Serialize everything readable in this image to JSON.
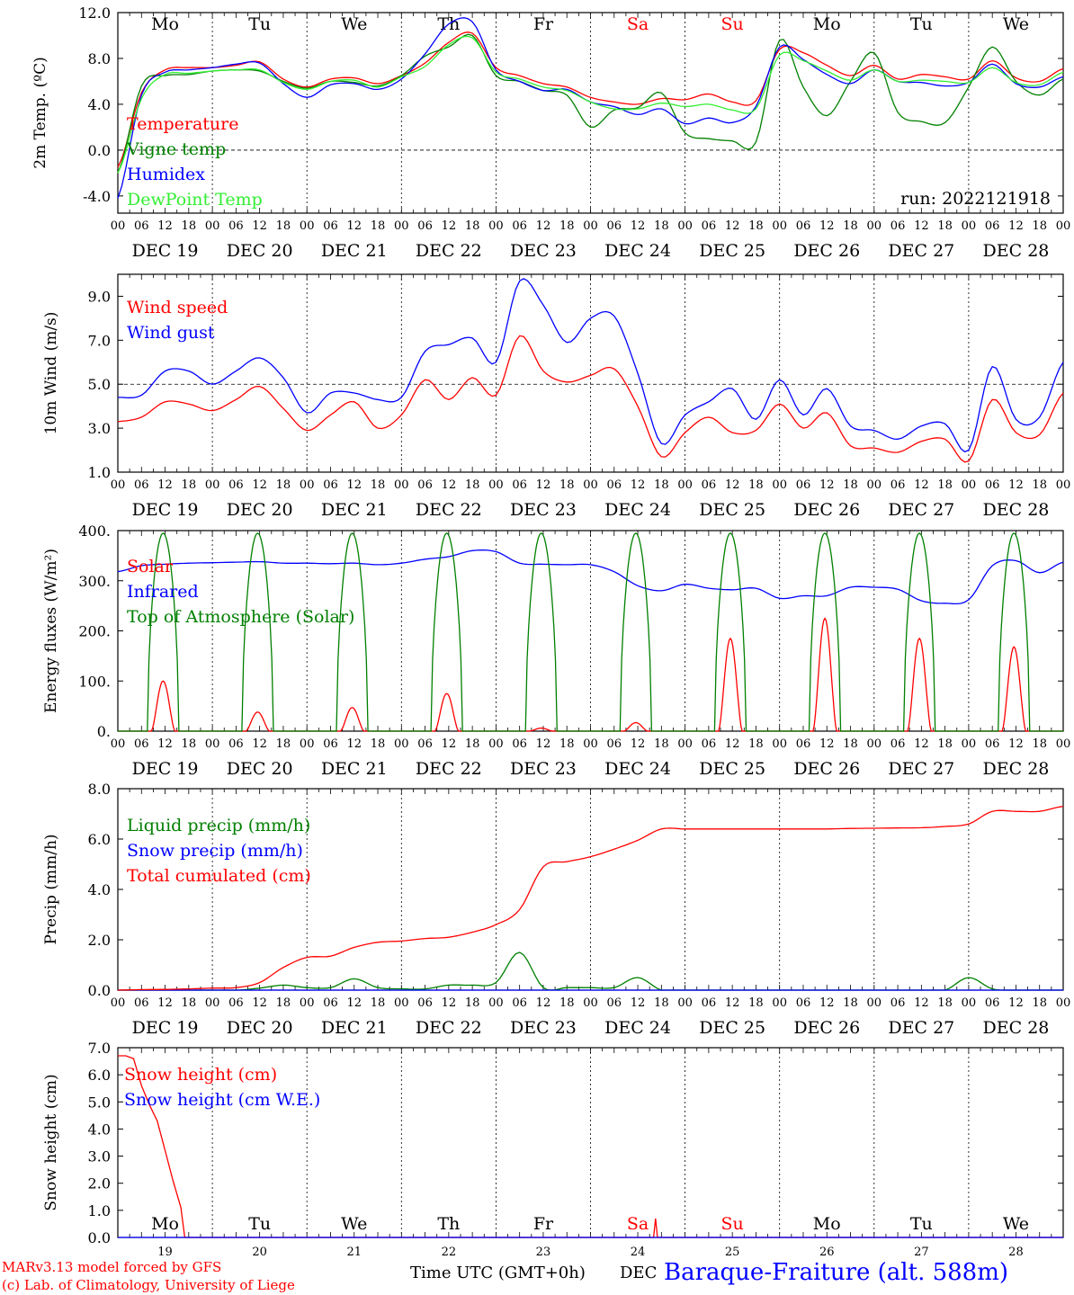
{
  "run_label": "run: 2022121918",
  "days": [
    "Mo",
    "Tu",
    "We",
    "Th",
    "Fr",
    "Sa",
    "Su",
    "Mo",
    "Tu",
    "We"
  ],
  "weekend_days": [
    "Sa",
    "Su"
  ],
  "date_labels": [
    "DEC 19",
    "DEC 20",
    "DEC 21",
    "DEC 22",
    "DEC 23",
    "DEC 24",
    "DEC 25",
    "DEC 26",
    "DEC 27",
    "DEC 28"
  ],
  "date_numbers": [
    "19",
    "20",
    "21",
    "22",
    "23",
    "24",
    "25",
    "26",
    "27",
    "28"
  ],
  "hour_ticks": [
    "00",
    "06",
    "12",
    "18"
  ],
  "colors": {
    "red": "#ff0000",
    "green": "#008000",
    "blue": "#0000ff",
    "lightgreen": "#33ee33"
  },
  "footer": {
    "model": "MARv3.13 model forced by GFS",
    "copyright": "(c) Lab. of Climatology, University of Liege",
    "time_label": "Time UTC (GMT+0h)",
    "dec_label": "DEC",
    "station": "Baraque-Fraiture (alt. 588m)"
  },
  "chart_data": [
    {
      "type": "line",
      "ylabel": "2m Temp. (ºC)",
      "ylim": [
        -5.5,
        12
      ],
      "yticks": [
        -4,
        0,
        4,
        8,
        12
      ],
      "ytick_labels": [
        "-4.0",
        "0.0",
        "4.0",
        "8.0",
        "12.0"
      ],
      "reference_line": 0,
      "x_hours": [
        0,
        6,
        12,
        18,
        24,
        30,
        36,
        42,
        48,
        54,
        60,
        66,
        72,
        78,
        84,
        90,
        96,
        102,
        108,
        114,
        120,
        126,
        132,
        138,
        144,
        150,
        156,
        162,
        168,
        174,
        180,
        186,
        192,
        198,
        204,
        210,
        216,
        222,
        228,
        234,
        240
      ],
      "series": [
        {
          "name": "Temperature",
          "color": "#ff0000",
          "values": [
            -1.5,
            5,
            7,
            7.2,
            7.2,
            7.4,
            7.7,
            6.2,
            5.5,
            6.2,
            6.3,
            5.8,
            6.5,
            7.6,
            9.4,
            10.2,
            7.2,
            6.5,
            5.8,
            5.5,
            4.6,
            4.2,
            4,
            4.5,
            4.4,
            4.9,
            4.2,
            4.3,
            8.8,
            8.5,
            7.4,
            6.5,
            7.4,
            6.2,
            6.6,
            6.4,
            6.2,
            7.8,
            6.3,
            6,
            7.1
          ]
        },
        {
          "name": "Vigne temp",
          "color": "#008000",
          "values": [
            -2,
            5.6,
            6.5,
            6.6,
            6.9,
            7,
            6.9,
            6,
            5.4,
            6,
            5.9,
            5.6,
            6.5,
            8.2,
            9,
            10,
            6.5,
            6,
            5.2,
            4.8,
            2,
            3.5,
            3.7,
            5,
            1.5,
            1,
            0.8,
            0.7,
            9.6,
            5.5,
            3,
            6,
            8.5,
            3.3,
            2.5,
            2.4,
            5.5,
            9,
            6,
            4.8,
            6.2
          ]
        },
        {
          "name": "Humidex",
          "color": "#0000ff",
          "values": [
            -4.2,
            4.8,
            6.8,
            7,
            7.2,
            7.5,
            7.6,
            5.8,
            4.6,
            5.7,
            5.8,
            5.3,
            6.2,
            8.4,
            11,
            11.2,
            7,
            6,
            5.2,
            5.3,
            4.2,
            3.8,
            3.1,
            3.6,
            2.3,
            2.8,
            2.4,
            3.8,
            9,
            7.9,
            6.6,
            5.8,
            7,
            6,
            5.9,
            5.6,
            5.9,
            7.5,
            5.8,
            5.5,
            6.4
          ]
        },
        {
          "name": "DewPoint Temp",
          "color": "#33ee33",
          "values": [
            -2,
            4.5,
            6.6,
            6.7,
            6.9,
            7,
            7,
            5.9,
            5.3,
            6,
            6.1,
            5.5,
            6.4,
            7.3,
            9.2,
            9.8,
            6.8,
            6.2,
            5.5,
            5.2,
            4.2,
            3.6,
            3.6,
            4.1,
            3.8,
            4,
            3.5,
            3.6,
            8.3,
            7.8,
            6.9,
            6.1,
            7,
            6,
            6.1,
            6,
            5.9,
            7.2,
            5.9,
            5.7,
            6.8
          ]
        }
      ]
    },
    {
      "type": "line",
      "ylabel": "10m Wind (m/s)",
      "ylim": [
        1,
        10
      ],
      "yticks": [
        1,
        3,
        5,
        7,
        9
      ],
      "ytick_labels": [
        "1.0",
        "3.0",
        "5.0",
        "7.0",
        "9.0"
      ],
      "reference_line": 5,
      "x_hours": [
        0,
        6,
        12,
        18,
        24,
        30,
        36,
        42,
        48,
        54,
        60,
        66,
        72,
        78,
        84,
        90,
        96,
        102,
        108,
        114,
        120,
        126,
        132,
        138,
        144,
        150,
        156,
        162,
        168,
        174,
        180,
        186,
        192,
        198,
        204,
        210,
        216,
        222,
        228,
        234,
        240
      ],
      "series": [
        {
          "name": "Wind speed",
          "color": "#ff0000",
          "values": [
            3.3,
            3.5,
            4.2,
            4.1,
            3.8,
            4.3,
            4.9,
            3.9,
            2.9,
            3.6,
            4.2,
            3,
            3.6,
            5.2,
            4.3,
            5.3,
            4.5,
            7.2,
            5.6,
            5.1,
            5.4,
            5.7,
            4,
            1.7,
            2.8,
            3.5,
            2.8,
            2.9,
            4.1,
            3,
            3.7,
            2.2,
            2.1,
            1.9,
            2.4,
            2.5,
            1.5,
            4.3,
            2.8,
            2.7,
            4.6
          ]
        },
        {
          "name": "Wind gust",
          "color": "#0000ff",
          "values": [
            4.4,
            4.5,
            5.6,
            5.6,
            5,
            5.6,
            6.2,
            5.3,
            3.7,
            4.6,
            4.6,
            4.3,
            4.4,
            6.5,
            6.8,
            7.1,
            6,
            9.7,
            8.6,
            6.9,
            8,
            8.1,
            5.5,
            2.3,
            3.6,
            4.2,
            4.8,
            3.4,
            5.2,
            3.6,
            4.8,
            3.1,
            2.9,
            2.5,
            3.1,
            3.2,
            2,
            5.8,
            3.4,
            3.5,
            6
          ]
        }
      ]
    },
    {
      "type": "line",
      "ylabel": "Energy fluxes (W/m²)",
      "ylim": [
        0,
        400
      ],
      "yticks": [
        0,
        100,
        200,
        300,
        400
      ],
      "ytick_labels": [
        "0.",
        "100.",
        "200.",
        "300.",
        "400."
      ],
      "x_hours": [
        0,
        6,
        12,
        18,
        24,
        30,
        36,
        42,
        48,
        54,
        60,
        66,
        72,
        78,
        84,
        90,
        96,
        102,
        108,
        114,
        120,
        126,
        132,
        138,
        144,
        150,
        156,
        162,
        168,
        174,
        180,
        186,
        192,
        198,
        204,
        210,
        216,
        222,
        228,
        234,
        240
      ],
      "series": [
        {
          "name": "Solar",
          "color": "#ff0000",
          "peaks_per_day": [
            100,
            38,
            47,
            75,
            6,
            17,
            185,
            225,
            185,
            168
          ]
        },
        {
          "name": "Infrared",
          "color": "#0000ff",
          "values": [
            318,
            330,
            333,
            335,
            336,
            337,
            338,
            335,
            335,
            334,
            335,
            332,
            335,
            343,
            348,
            360,
            358,
            335,
            333,
            332,
            332,
            318,
            290,
            280,
            293,
            285,
            282,
            285,
            265,
            270,
            270,
            287,
            287,
            283,
            260,
            255,
            262,
            330,
            340,
            316,
            337
          ]
        },
        {
          "name": "Top of Atmosphere (Solar)",
          "color": "#008000",
          "peaks_per_day": [
            395,
            395,
            395,
            395,
            395,
            395,
            395,
            395,
            395,
            395
          ]
        }
      ]
    },
    {
      "type": "line",
      "ylabel": "Precip (mm/h)",
      "ylim": [
        0,
        8
      ],
      "yticks": [
        0,
        2,
        4,
        6,
        8
      ],
      "ytick_labels": [
        "0.0",
        "2.0",
        "4.0",
        "6.0",
        "8.0"
      ],
      "x_hours": [
        0,
        6,
        12,
        18,
        24,
        30,
        36,
        42,
        48,
        54,
        60,
        66,
        72,
        78,
        84,
        90,
        96,
        102,
        108,
        114,
        120,
        126,
        132,
        138,
        144,
        150,
        156,
        162,
        168,
        174,
        180,
        186,
        192,
        198,
        204,
        210,
        216,
        222,
        228,
        234,
        240
      ],
      "series": [
        {
          "name": "Liquid precip (mm/h)",
          "color": "#008000",
          "values": [
            0,
            0,
            0,
            0,
            0,
            0,
            0.08,
            0.2,
            0.1,
            0.1,
            0.45,
            0.1,
            0.05,
            0.05,
            0.2,
            0.2,
            0.3,
            1.5,
            0.1,
            0.1,
            0.1,
            0.1,
            0.5,
            0,
            0,
            0,
            0,
            0,
            0,
            0,
            0,
            0,
            0,
            0,
            0,
            0,
            0.5,
            0.05,
            0,
            0,
            0
          ]
        },
        {
          "name": "Snow precip (mm/h)",
          "color": "#0000ff",
          "values": [
            0,
            0,
            0,
            0,
            0,
            0,
            0,
            0,
            0,
            0,
            0,
            0,
            0,
            0,
            0,
            0,
            0,
            0,
            0,
            0,
            0,
            0,
            0,
            0,
            0,
            0,
            0,
            0,
            0,
            0,
            0,
            0,
            0,
            0,
            0,
            0,
            0,
            0,
            0,
            0,
            0
          ]
        },
        {
          "name": "Total cumulated (cm)",
          "color": "#ff0000",
          "values": [
            0,
            0.02,
            0.03,
            0.05,
            0.08,
            0.1,
            0.3,
            0.9,
            1.3,
            1.35,
            1.7,
            1.9,
            1.95,
            2.05,
            2.1,
            2.3,
            2.6,
            3.2,
            4.9,
            5.1,
            5.3,
            5.6,
            5.95,
            6.4,
            6.4,
            6.4,
            6.4,
            6.4,
            6.4,
            6.4,
            6.4,
            6.42,
            6.43,
            6.44,
            6.45,
            6.5,
            6.6,
            7.1,
            7.1,
            7.1,
            7.3
          ]
        }
      ]
    },
    {
      "type": "line",
      "ylabel": "Snow height (cm)",
      "ylim": [
        0,
        7
      ],
      "yticks": [
        0,
        1,
        2,
        3,
        4,
        5,
        6,
        7
      ],
      "ytick_labels": [
        "0.0",
        "1.0",
        "2.0",
        "3.0",
        "4.0",
        "5.0",
        "6.0",
        "7.0"
      ],
      "x_hours": [
        0,
        2,
        4,
        6,
        8,
        10,
        12,
        14,
        16,
        17,
        18,
        24,
        60,
        120,
        136,
        136.5,
        137,
        137.5,
        144,
        240
      ],
      "series": [
        {
          "name": "Snow height (cm)",
          "color": "#ff0000",
          "values": [
            6.7,
            6.7,
            6.6,
            5.6,
            4.9,
            4.3,
            3.2,
            2.1,
            1.1,
            0,
            0,
            0,
            0,
            0,
            0,
            0.7,
            0,
            0,
            0,
            0
          ]
        },
        {
          "name": "Snow height (cm W.E.)",
          "color": "#0000ff",
          "values": [
            0,
            0,
            0,
            0,
            0,
            0,
            0,
            0,
            0,
            0,
            0,
            0,
            0,
            0,
            0,
            0,
            0,
            0,
            0,
            0
          ]
        }
      ]
    }
  ]
}
